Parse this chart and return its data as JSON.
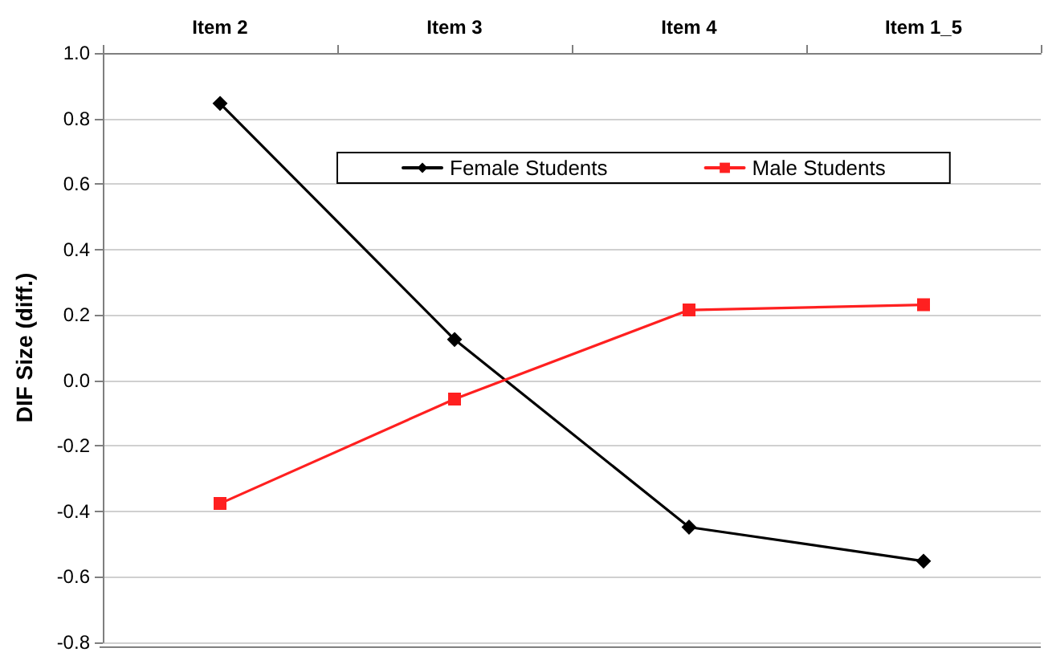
{
  "chart_data": {
    "type": "line",
    "ylabel": "DIF Size (diff.)",
    "categories": [
      "Item 2",
      "Item 3",
      "Item 4",
      "Item 1_5"
    ],
    "series": [
      {
        "name": "Female Students",
        "color": "#000000",
        "marker": "diamond",
        "values": [
          0.846,
          0.125,
          -0.448,
          -0.552
        ]
      },
      {
        "name": "Male Students",
        "color": "#ff2020",
        "marker": "square",
        "values": [
          -0.376,
          -0.057,
          0.215,
          0.231
        ]
      }
    ],
    "ylim": [
      -0.8,
      1.0
    ],
    "yticks": [
      -0.8,
      -0.6,
      -0.4,
      -0.2,
      {
        "value": 0,
        "label": "0.0"
      },
      0.2,
      0.4,
      0.6,
      0.8,
      {
        "value": 1,
        "label": "1.0"
      }
    ],
    "grid": "y",
    "legend": "top"
  }
}
